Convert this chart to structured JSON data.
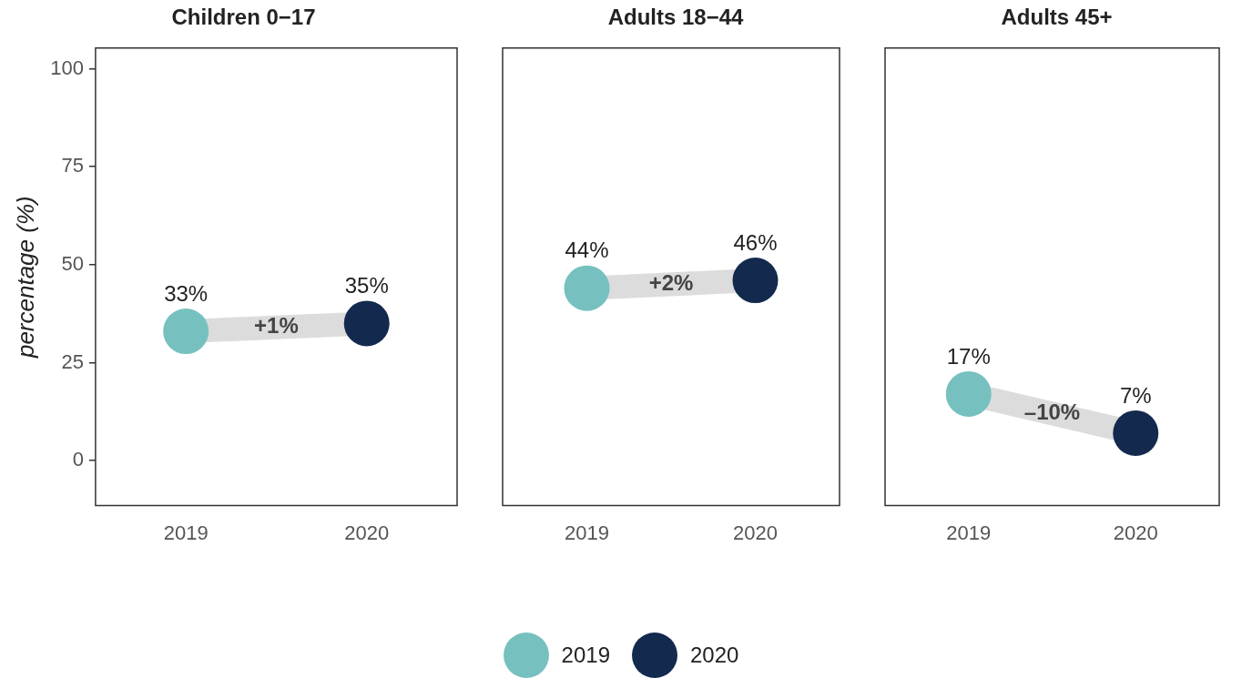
{
  "chart_data": [
    {
      "type": "scatter",
      "title": "Children 0−17",
      "ylabel": "percentage (%)",
      "categories": [
        "2019",
        "2020"
      ],
      "ylim": [
        -11.5,
        105.3
      ],
      "yticks": [
        0,
        25,
        50,
        75,
        100
      ],
      "grid": false,
      "legend": "bottom",
      "marker": "circle",
      "annotations": [
        "+1%"
      ],
      "series": [
        {
          "name": "2019",
          "color": "#76c1bf",
          "values": [
            33,
            null
          ],
          "value_labels": [
            "33%",
            null
          ]
        },
        {
          "name": "2020",
          "color": "#132a4e",
          "values": [
            null,
            35
          ],
          "value_labels": [
            null,
            "35%"
          ]
        }
      ]
    },
    {
      "type": "scatter",
      "title": "Adults 18−44",
      "categories": [
        "2019",
        "2020"
      ],
      "ylim": [
        -11.5,
        105.3
      ],
      "yticks": [
        0,
        25,
        50,
        75,
        100
      ],
      "tick_labels": "x",
      "grid": false,
      "marker": "circle",
      "annotations": [
        "+2%"
      ],
      "series": [
        {
          "name": "2019",
          "color": "#76c1bf",
          "values": [
            44,
            null
          ],
          "value_labels": [
            "44%",
            null
          ]
        },
        {
          "name": "2020",
          "color": "#132a4e",
          "values": [
            null,
            46
          ],
          "value_labels": [
            null,
            "46%"
          ]
        }
      ]
    },
    {
      "type": "scatter",
      "title": "Adults 45+",
      "categories": [
        "2019",
        "2020"
      ],
      "ylim": [
        -11.5,
        105.3
      ],
      "yticks": [
        0,
        25,
        50,
        75,
        100
      ],
      "tick_labels": "x",
      "grid": false,
      "marker": "circle",
      "annotations": [
        "–10%"
      ],
      "series": [
        {
          "name": "2019",
          "color": "#76c1bf",
          "values": [
            17,
            null
          ],
          "value_labels": [
            "17%",
            null
          ]
        },
        {
          "name": "2020",
          "color": "#132a4e",
          "values": [
            null,
            7
          ],
          "value_labels": [
            null,
            "7%"
          ]
        }
      ]
    }
  ]
}
